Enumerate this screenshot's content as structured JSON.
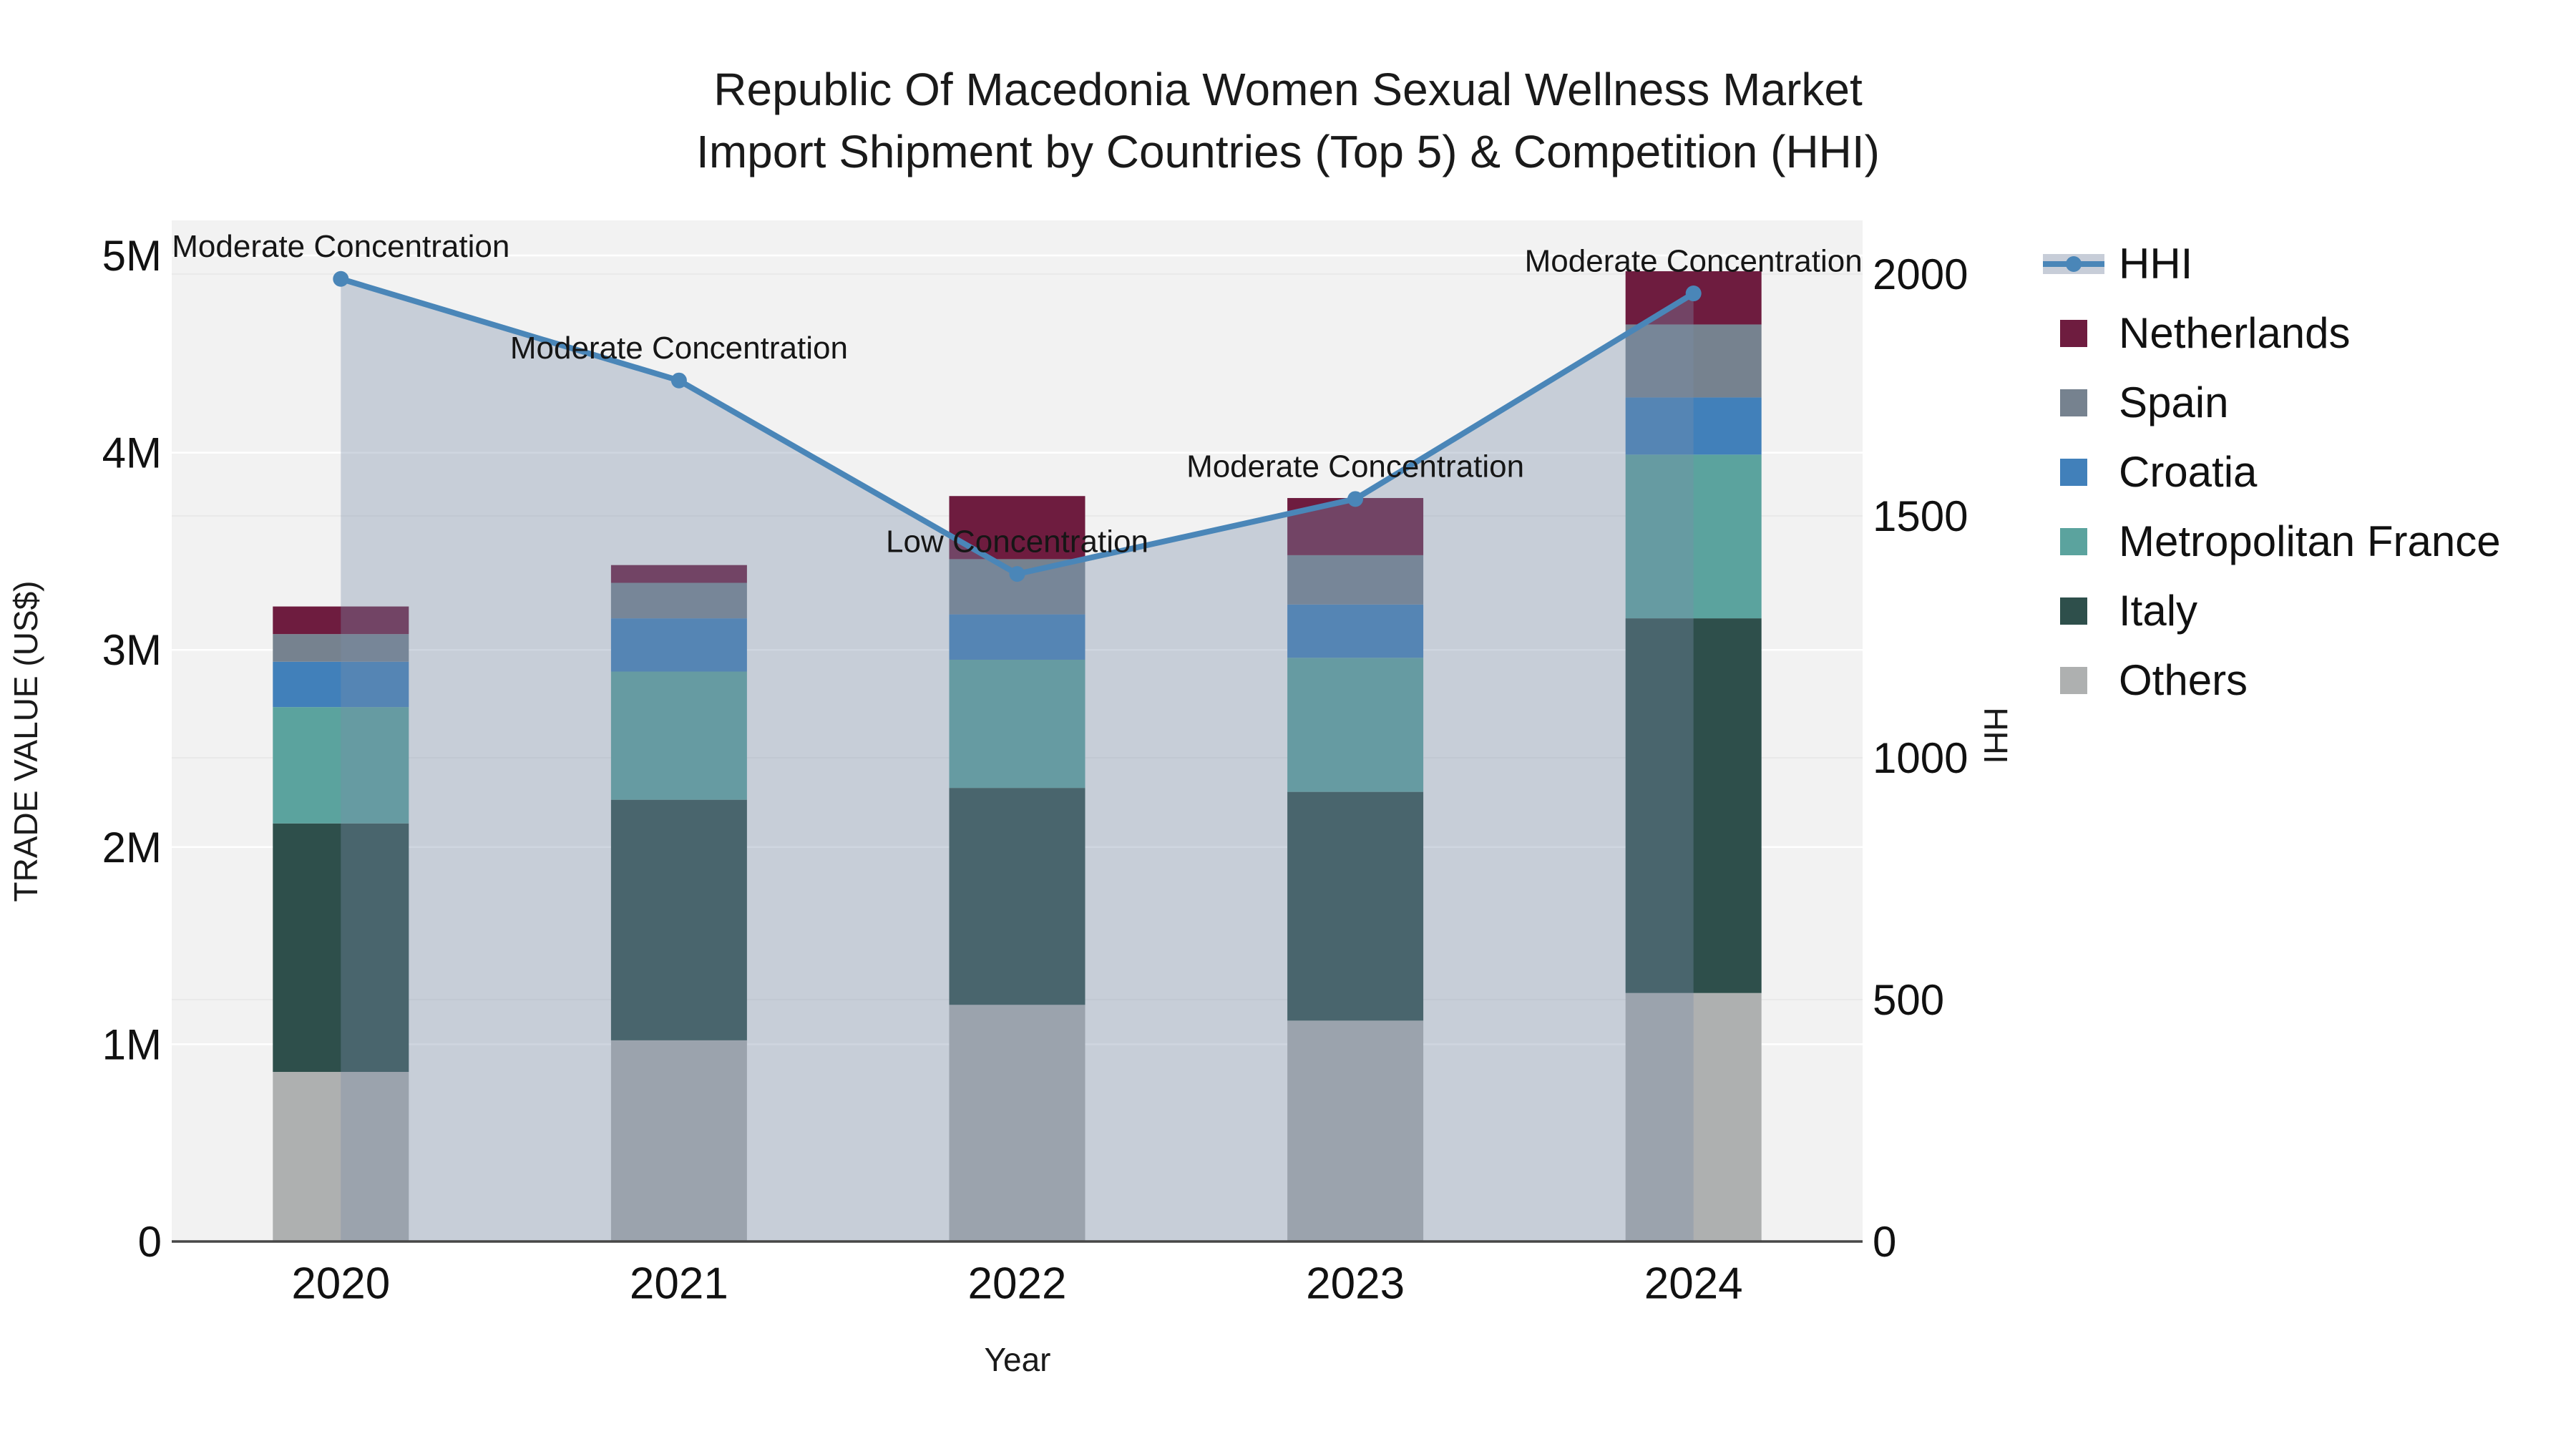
{
  "title": {
    "line1": "Republic Of Macedonia Women Sexual Wellness Market",
    "line2": "Import Shipment by Countries (Top 5) & Competition (HHI)"
  },
  "axis_titles": {
    "left": "TRADE VALUE (US$)",
    "bottom": "Year",
    "right": "HHI"
  },
  "legend": {
    "items": [
      {
        "label": "HHI",
        "type": "line",
        "color": "#4a86b8"
      },
      {
        "label": "Netherlands",
        "type": "square",
        "color": "#6e1c3f"
      },
      {
        "label": "Spain",
        "type": "square",
        "color": "#76828f"
      },
      {
        "label": "Croatia",
        "type": "square",
        "color": "#4180ba"
      },
      {
        "label": "Metropolitan France",
        "type": "square",
        "color": "#5ba39e"
      },
      {
        "label": "Italy",
        "type": "square",
        "color": "#2e4f4b"
      },
      {
        "label": "Others",
        "type": "square",
        "color": "#aeb0b0"
      }
    ]
  },
  "chart_data": {
    "type": "combo-stacked-bar-line",
    "categories": [
      "2020",
      "2021",
      "2022",
      "2023",
      "2024"
    ],
    "bar_value_unit": "US$",
    "series": [
      {
        "name": "Others",
        "color": "#aeb0b0",
        "values": [
          860000,
          1020000,
          1200000,
          1120000,
          1260000
        ]
      },
      {
        "name": "Italy",
        "color": "#2e4f4b",
        "values": [
          1260000,
          1220000,
          1100000,
          1160000,
          1900000
        ]
      },
      {
        "name": "Metropolitan France",
        "color": "#5ba39e",
        "values": [
          590000,
          650000,
          650000,
          680000,
          830000
        ]
      },
      {
        "name": "Croatia",
        "color": "#4180ba",
        "values": [
          230000,
          270000,
          230000,
          270000,
          290000
        ]
      },
      {
        "name": "Spain",
        "color": "#76828f",
        "values": [
          140000,
          180000,
          280000,
          250000,
          370000
        ]
      },
      {
        "name": "Netherlands",
        "color": "#6e1c3f",
        "values": [
          140000,
          90000,
          320000,
          290000,
          270000
        ]
      }
    ],
    "line_series": {
      "name": "HHI",
      "axis": "right",
      "color": "#4a86b8",
      "values": [
        1990,
        1780,
        1380,
        1535,
        1960
      ]
    },
    "annotations": [
      {
        "category": "2020",
        "text": "Moderate Concentration"
      },
      {
        "category": "2021",
        "text": "Moderate Concentration"
      },
      {
        "category": "2022",
        "text": "Low Concentration"
      },
      {
        "category": "2023",
        "text": "Moderate Concentration"
      },
      {
        "category": "2024",
        "text": "Moderate Concentration"
      }
    ],
    "left_axis": {
      "title": "TRADE VALUE (US$)",
      "range": [
        0,
        5000000
      ],
      "ticks": [
        {
          "value": 0,
          "label": "0"
        },
        {
          "value": 1000000,
          "label": "1M"
        },
        {
          "value": 2000000,
          "label": "2M"
        },
        {
          "value": 3000000,
          "label": "3M"
        },
        {
          "value": 4000000,
          "label": "4M"
        },
        {
          "value": 5000000,
          "label": "5M"
        }
      ]
    },
    "right_axis": {
      "title": "HHI",
      "range": [
        0,
        2000
      ],
      "ticks": [
        {
          "value": 0,
          "label": "0"
        },
        {
          "value": 500,
          "label": "500"
        },
        {
          "value": 1000,
          "label": "1000"
        },
        {
          "value": 1500,
          "label": "1500"
        },
        {
          "value": 2000,
          "label": "2000"
        }
      ]
    },
    "x_axis": {
      "title": "Year"
    },
    "layout_hints": {
      "grid": "horizontal",
      "legend_position": "right",
      "area_fill_under_line": true
    }
  },
  "colors": {
    "plot_bg": "#f2f2f2",
    "grid_left": "#ffffff",
    "grid_right": "#e9e9e9",
    "baseline": "#474747",
    "area_fill": "rgba(122,140,170,0.36)",
    "hhi_line": "#4a86b8",
    "text": "#111111"
  }
}
